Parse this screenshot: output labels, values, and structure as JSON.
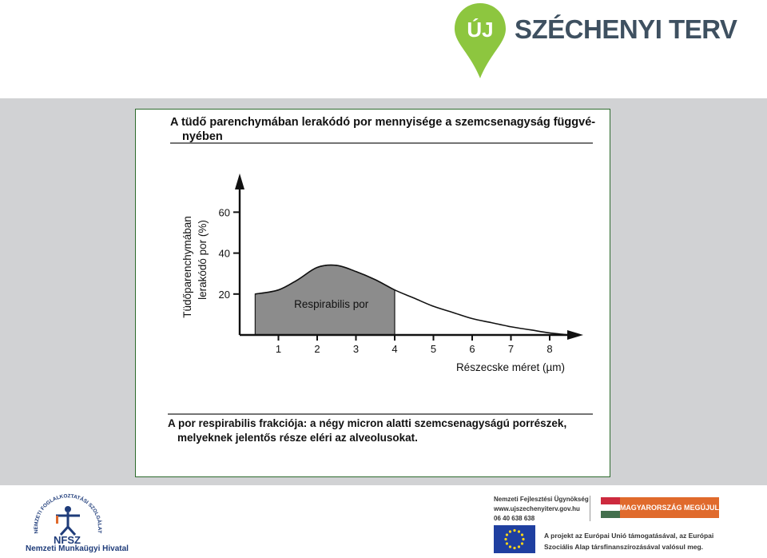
{
  "header": {
    "logo_badge": "ÚJ",
    "logo_text": "SZÉCHENYI TERV",
    "logo_color": "#8dc63f"
  },
  "slide": {
    "heading": "A tüdő parenchymában lerakódó por mennyisége a szemcsenagyság függvé- nyében",
    "caption": "A por respirabilis frakciója: a négy micron alatti szemcsenagyságú porrészek, melyeknek jelentős része eléri az alveolusokat."
  },
  "chart_data": {
    "type": "area",
    "ylabel": "Tüdőparenchymában lerakódó por (%)",
    "xlabel": "Részecske méret (µm)",
    "y_ticks": [
      "20",
      "40",
      "60"
    ],
    "x_ticks": [
      "1",
      "2",
      "3",
      "4",
      "5",
      "6",
      "7",
      "8"
    ],
    "xlim": [
      0,
      8.8
    ],
    "ylim": [
      0,
      75
    ],
    "series": [
      {
        "x": [
          0.4,
          1,
          1.5,
          2,
          2.5,
          3,
          3.5,
          4,
          4.5,
          5,
          5.5,
          6,
          6.5,
          7,
          7.5,
          8,
          8.5
        ],
        "values": [
          20,
          22,
          27,
          33,
          34,
          31,
          27,
          22,
          18,
          14,
          11,
          8,
          6,
          4,
          2.5,
          1,
          0
        ]
      }
    ],
    "shaded_region": {
      "x": [
        0.4,
        4
      ],
      "label": "Respirabilis por",
      "color": "#8c8c8c"
    },
    "grid": false
  },
  "footer": {
    "nfsz_arc_text": "NEMZETI FOGLALKOZTATÁSI SZOLGÁLAT",
    "nfsz_short": "NFSZ",
    "nfsz_name": "Nemzeti Munkaügyi Hivatal",
    "agency_name": "Nemzeti Fejlesztési Ügynökség",
    "agency_url": "www.ujszechenyiterv.gov.hu",
    "agency_phone": "06 40 638 638",
    "mo_badge": "MAGYARORSZÁG MEGÚJUL",
    "eu_line1": "A projekt az Európai Unió támogatásával, az Európai",
    "eu_line2": "Szociális Alap társfinanszírozásával valósul meg."
  }
}
